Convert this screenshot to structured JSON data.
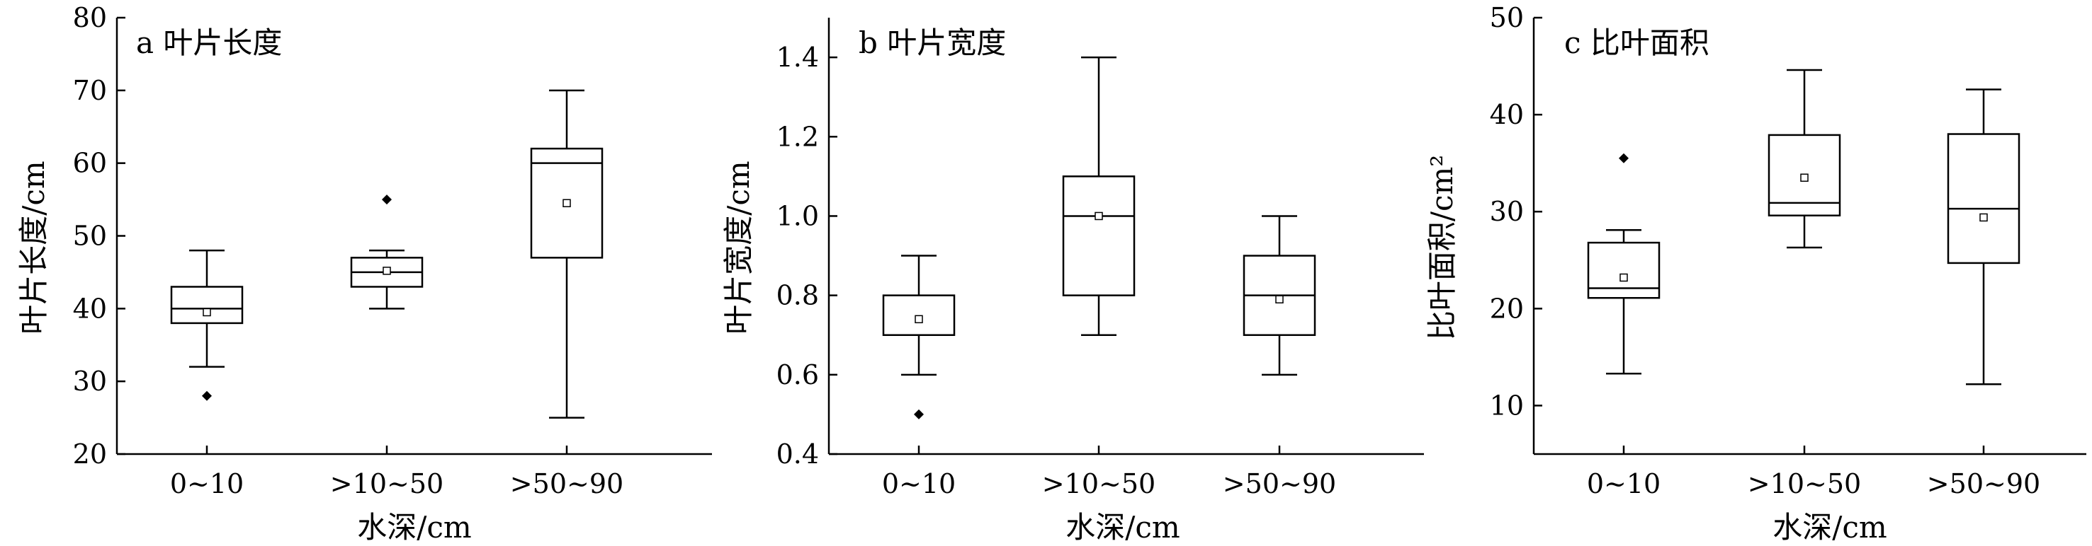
{
  "chart_data": [
    {
      "type": "box",
      "title": "a 叶片长度",
      "xlabel": "水深/cm",
      "ylabel": "叶片长度/cm",
      "ylim": [
        20,
        80
      ],
      "yticks": [
        "20",
        "30",
        "40",
        "50",
        "60",
        "70",
        "80"
      ],
      "ytick_values": [
        20,
        30,
        40,
        50,
        60,
        70,
        80
      ],
      "categories": [
        "0~10",
        ">10~50",
        ">50~90"
      ],
      "boxes": [
        {
          "whisker_low": 32,
          "q1": 38,
          "median": 40,
          "q3": 43,
          "whisker_high": 48,
          "mean": 39.5,
          "outliers": [
            28
          ]
        },
        {
          "whisker_low": 40,
          "q1": 43,
          "median": 45,
          "q3": 47,
          "whisker_high": 48,
          "mean": 45.2,
          "outliers": [
            55
          ]
        },
        {
          "whisker_low": 25,
          "q1": 47,
          "median": 60,
          "q3": 62,
          "whisker_high": 70,
          "mean": 54.5,
          "outliers": []
        }
      ]
    },
    {
      "type": "box",
      "title": "b 叶片宽度",
      "xlabel": "水深/cm",
      "ylabel": "叶片宽度/cm",
      "ylim": [
        0.4,
        1.5
      ],
      "yticks": [
        "0.4",
        "0.6",
        "0.8",
        "1.0",
        "1.2",
        "1.4"
      ],
      "ytick_values": [
        0.4,
        0.6,
        0.8,
        1.0,
        1.2,
        1.4
      ],
      "categories": [
        "0~10",
        ">10~50",
        ">50~90"
      ],
      "boxes": [
        {
          "whisker_low": 0.6,
          "q1": 0.7,
          "median": 0.7,
          "q3": 0.8,
          "whisker_high": 0.9,
          "mean": 0.74,
          "outliers": [
            0.5
          ]
        },
        {
          "whisker_low": 0.7,
          "q1": 0.8,
          "median": 1.0,
          "q3": 1.1,
          "whisker_high": 1.4,
          "mean": 1.0,
          "outliers": []
        },
        {
          "whisker_low": 0.6,
          "q1": 0.7,
          "median": 0.8,
          "q3": 0.9,
          "whisker_high": 1.0,
          "mean": 0.79,
          "outliers": []
        }
      ]
    },
    {
      "type": "box",
      "title": "c 比叶面积",
      "xlabel": "水深/cm",
      "ylabel": "比叶面积/cm²",
      "ylim": [
        5,
        50
      ],
      "yticks": [
        "10",
        "20",
        "30",
        "40",
        "50"
      ],
      "ytick_values": [
        10,
        20,
        30,
        40,
        50
      ],
      "categories": [
        "0~10",
        ">10~50",
        ">50~90"
      ],
      "boxes": [
        {
          "whisker_low": 13.3,
          "q1": 21.1,
          "median": 22.1,
          "q3": 26.8,
          "whisker_high": 28.1,
          "mean": 23.2,
          "outliers": [
            35.5
          ]
        },
        {
          "whisker_low": 26.3,
          "q1": 29.6,
          "median": 30.9,
          "q3": 37.9,
          "whisker_high": 44.6,
          "mean": 33.5,
          "outliers": []
        },
        {
          "whisker_low": 12.2,
          "q1": 24.7,
          "median": 30.3,
          "q3": 38.0,
          "whisker_high": 42.6,
          "mean": 29.4,
          "outliers": []
        }
      ]
    }
  ]
}
